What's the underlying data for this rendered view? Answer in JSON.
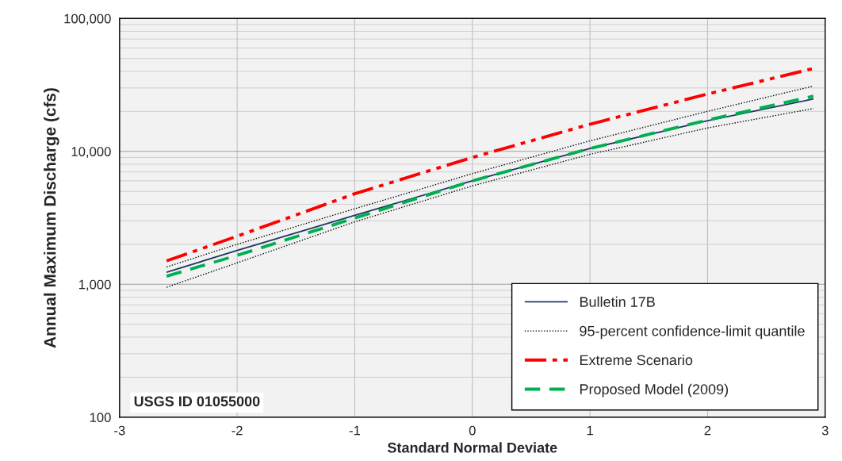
{
  "chart_data": {
    "type": "line",
    "xlabel": "Standard Normal Deviate",
    "ylabel": "Annual Maximum Discharge (cfs)",
    "x": [
      -2.6,
      -2,
      -1,
      0,
      1,
      2,
      2.9
    ],
    "series": [
      {
        "name": "Bulletin 17B",
        "color": "#1f3864",
        "line_style": "solid",
        "values": [
          1230,
          1800,
          3300,
          6000,
          10500,
          17000,
          24800
        ]
      },
      {
        "name": "95-percent confidence-limit quantile",
        "color": "#000000",
        "line_style": "dotted",
        "values": [
          1350,
          2000,
          3700,
          6800,
          12000,
          20000,
          31000
        ]
      },
      {
        "color": "#000000",
        "line_style": "dotted",
        "values": [
          950,
          1450,
          2950,
          5500,
          9500,
          15000,
          21000
        ]
      },
      {
        "name": "Extreme Scenario",
        "color": "#ff0000",
        "line_style": "dashdot",
        "values": [
          1500,
          2300,
          4800,
          9000,
          16000,
          27000,
          42000
        ]
      },
      {
        "name": "Proposed Model (2009)",
        "color": "#00b050",
        "line_style": "dashed",
        "values": [
          1150,
          1650,
          3150,
          6000,
          10500,
          17200,
          26000
        ]
      }
    ],
    "log": "y",
    "xlim": [
      -3,
      3
    ],
    "xticks": [
      -3,
      -2,
      -1,
      0,
      1,
      2,
      3
    ],
    "ylim": [
      100,
      100000
    ],
    "yticks": [
      {
        "value": 100,
        "label": "100"
      },
      {
        "value": 1000,
        "label": "1,000"
      },
      {
        "value": 10000,
        "label": "10,000"
      },
      {
        "value": 100000,
        "label": "100,000"
      }
    ],
    "grid": true,
    "legend": "bottom right",
    "annotations": [
      "USGS ID 01055000"
    ]
  }
}
